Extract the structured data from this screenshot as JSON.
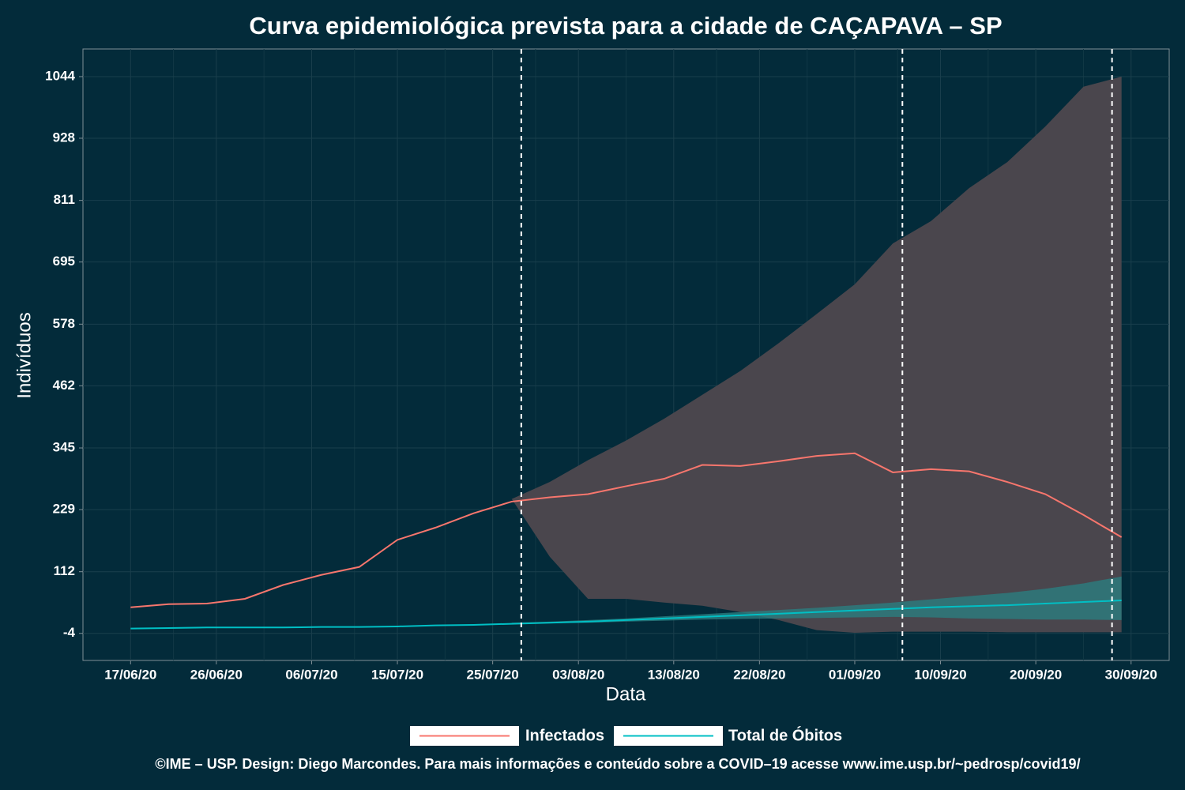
{
  "chart_data": {
    "type": "line",
    "title": "Curva epidemiológica prevista para a cidade de CAÇAPAVA – SP",
    "x_label": "Data",
    "y_label": "Indivíduos",
    "caption": "©IME – USP. Design: Diego Marcondes. Para mais informações e conteúdo sobre a COVID–19 acesse www.ime.usp.br/~pedrosp/covid19/",
    "legend": "bottom",
    "grid": true,
    "x": [
      "17/06/20",
      "21/06/20",
      "25/06/20",
      "29/06/20",
      "03/07/20",
      "07/07/20",
      "11/07/20",
      "15/07/20",
      "19/07/20",
      "23/07/20",
      "27/07/20",
      "31/07/20",
      "04/08/20",
      "08/08/20",
      "12/08/20",
      "16/08/20",
      "20/08/20",
      "24/08/20",
      "28/08/20",
      "01/09/20",
      "05/09/20",
      "09/09/20",
      "13/09/20",
      "17/09/20",
      "21/09/20",
      "25/09/20",
      "29/09/20"
    ],
    "series": [
      {
        "name": "Infectados",
        "color": "#f8766d",
        "values": [
          45,
          51,
          52,
          61,
          87,
          106,
          121,
          172,
          195,
          222,
          244,
          252,
          258,
          273,
          287,
          313,
          311,
          320,
          330,
          335,
          299,
          305,
          301,
          281,
          258,
          219,
          177
        ]
      },
      {
        "name": "Total de Óbitos",
        "color": "#00bfc4",
        "values": [
          5,
          6,
          7,
          7,
          7,
          8,
          8,
          9,
          11,
          12,
          14,
          16,
          18,
          21,
          24,
          27,
          30,
          33,
          36,
          39,
          42,
          45,
          47,
          49,
          52,
          55,
          58
        ]
      }
    ],
    "bands": [
      {
        "color": "#4a464d",
        "upper": [
          null,
          null,
          null,
          null,
          null,
          null,
          null,
          null,
          null,
          null,
          249,
          281,
          322,
          359,
          400,
          445,
          490,
          542,
          597,
          653,
          730,
          772,
          834,
          883,
          950,
          1025,
          1044
        ],
        "lower": [
          null,
          null,
          null,
          null,
          null,
          null,
          null,
          null,
          null,
          null,
          249,
          140,
          61,
          61,
          54,
          48,
          36,
          21,
          2,
          -3,
          -1,
          -1,
          -1,
          -2,
          -2,
          -2,
          -2
        ]
      },
      {
        "color": "#2a7d80",
        "upper": [
          null,
          null,
          null,
          null,
          null,
          null,
          null,
          null,
          null,
          null,
          16,
          18,
          21,
          24,
          28,
          32,
          36,
          40,
          44,
          49,
          54,
          60,
          66,
          72,
          80,
          90,
          103
        ],
        "lower": [
          null,
          null,
          null,
          null,
          null,
          null,
          null,
          null,
          null,
          null,
          13,
          15,
          16,
          18,
          20,
          22,
          23,
          24,
          25,
          26,
          27,
          26,
          24,
          23,
          22,
          22,
          21
        ]
      }
    ],
    "vlines": [
      "28/07/20",
      "06/09/20",
      "28/09/20"
    ],
    "xlim": [
      "12/06/20",
      "04/10/20"
    ],
    "xticks": [
      "17/06/20",
      "26/06/20",
      "06/07/20",
      "15/07/20",
      "25/07/20",
      "03/08/20",
      "13/08/20",
      "22/08/20",
      "01/09/20",
      "10/09/20",
      "20/09/20",
      "30/09/20"
    ],
    "ylim": [
      -55,
      1096
    ],
    "yticks": [
      -4,
      112,
      229,
      345,
      462,
      578,
      695,
      811,
      928,
      1044
    ]
  }
}
